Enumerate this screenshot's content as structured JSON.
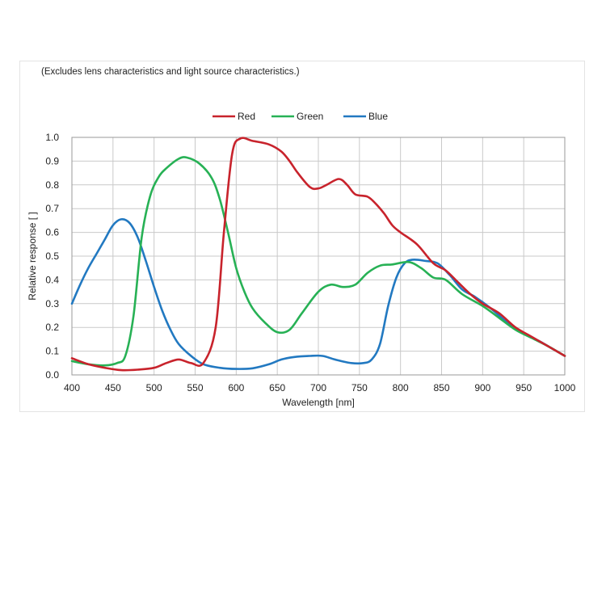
{
  "chart_data": {
    "type": "line",
    "note": "(Excludes lens characteristics and light source characteristics.)",
    "xlabel": "Wavelength [nm]",
    "ylabel": "Relative response [ ]",
    "xlim": [
      400,
      1000
    ],
    "ylim": [
      0,
      1.0
    ],
    "x_ticks": [
      400,
      450,
      500,
      550,
      600,
      650,
      700,
      750,
      800,
      850,
      900,
      950,
      1000
    ],
    "y_ticks": [
      "0.0",
      "0.1",
      "0.2",
      "0.3",
      "0.4",
      "0.5",
      "0.6",
      "0.7",
      "0.8",
      "0.9",
      "1.0"
    ],
    "grid": true,
    "legend_position": "top-center",
    "series": [
      {
        "name": "Red",
        "color": "#c8232c",
        "points": [
          [
            400,
            0.07
          ],
          [
            420,
            0.045
          ],
          [
            440,
            0.03
          ],
          [
            460,
            0.02
          ],
          [
            480,
            0.022
          ],
          [
            500,
            0.03
          ],
          [
            515,
            0.05
          ],
          [
            530,
            0.065
          ],
          [
            545,
            0.05
          ],
          [
            560,
            0.05
          ],
          [
            575,
            0.2
          ],
          [
            585,
            0.6
          ],
          [
            595,
            0.93
          ],
          [
            605,
            0.995
          ],
          [
            620,
            0.985
          ],
          [
            640,
            0.97
          ],
          [
            655,
            0.94
          ],
          [
            665,
            0.9
          ],
          [
            675,
            0.85
          ],
          [
            690,
            0.79
          ],
          [
            700,
            0.785
          ],
          [
            710,
            0.8
          ],
          [
            725,
            0.825
          ],
          [
            735,
            0.8
          ],
          [
            745,
            0.76
          ],
          [
            760,
            0.75
          ],
          [
            770,
            0.72
          ],
          [
            780,
            0.68
          ],
          [
            790,
            0.63
          ],
          [
            800,
            0.6
          ],
          [
            820,
            0.55
          ],
          [
            840,
            0.47
          ],
          [
            855,
            0.44
          ],
          [
            870,
            0.39
          ],
          [
            885,
            0.34
          ],
          [
            900,
            0.3
          ],
          [
            920,
            0.26
          ],
          [
            940,
            0.2
          ],
          [
            960,
            0.16
          ],
          [
            980,
            0.12
          ],
          [
            1000,
            0.08
          ]
        ]
      },
      {
        "name": "Green",
        "color": "#27b155",
        "points": [
          [
            400,
            0.058
          ],
          [
            420,
            0.045
          ],
          [
            440,
            0.04
          ],
          [
            455,
            0.05
          ],
          [
            465,
            0.08
          ],
          [
            475,
            0.25
          ],
          [
            485,
            0.58
          ],
          [
            495,
            0.75
          ],
          [
            505,
            0.83
          ],
          [
            515,
            0.87
          ],
          [
            530,
            0.91
          ],
          [
            540,
            0.915
          ],
          [
            555,
            0.89
          ],
          [
            570,
            0.83
          ],
          [
            580,
            0.74
          ],
          [
            590,
            0.6
          ],
          [
            600,
            0.45
          ],
          [
            610,
            0.35
          ],
          [
            620,
            0.28
          ],
          [
            635,
            0.22
          ],
          [
            650,
            0.18
          ],
          [
            665,
            0.19
          ],
          [
            680,
            0.26
          ],
          [
            700,
            0.35
          ],
          [
            715,
            0.38
          ],
          [
            730,
            0.37
          ],
          [
            745,
            0.38
          ],
          [
            760,
            0.43
          ],
          [
            775,
            0.46
          ],
          [
            790,
            0.465
          ],
          [
            810,
            0.475
          ],
          [
            825,
            0.45
          ],
          [
            840,
            0.41
          ],
          [
            855,
            0.4
          ],
          [
            875,
            0.34
          ],
          [
            900,
            0.29
          ],
          [
            920,
            0.24
          ],
          [
            940,
            0.19
          ],
          [
            960,
            0.155
          ],
          [
            980,
            0.12
          ],
          [
            1000,
            0.08
          ]
        ]
      },
      {
        "name": "Blue",
        "color": "#2279c1",
        "points": [
          [
            400,
            0.3
          ],
          [
            410,
            0.38
          ],
          [
            420,
            0.45
          ],
          [
            430,
            0.51
          ],
          [
            440,
            0.57
          ],
          [
            450,
            0.63
          ],
          [
            460,
            0.655
          ],
          [
            470,
            0.64
          ],
          [
            480,
            0.58
          ],
          [
            490,
            0.48
          ],
          [
            500,
            0.37
          ],
          [
            510,
            0.27
          ],
          [
            520,
            0.19
          ],
          [
            530,
            0.13
          ],
          [
            545,
            0.08
          ],
          [
            560,
            0.045
          ],
          [
            580,
            0.03
          ],
          [
            600,
            0.025
          ],
          [
            620,
            0.028
          ],
          [
            640,
            0.045
          ],
          [
            655,
            0.065
          ],
          [
            670,
            0.075
          ],
          [
            690,
            0.08
          ],
          [
            705,
            0.08
          ],
          [
            720,
            0.065
          ],
          [
            740,
            0.05
          ],
          [
            755,
            0.05
          ],
          [
            765,
            0.065
          ],
          [
            775,
            0.13
          ],
          [
            785,
            0.29
          ],
          [
            795,
            0.41
          ],
          [
            805,
            0.47
          ],
          [
            815,
            0.485
          ],
          [
            830,
            0.48
          ],
          [
            845,
            0.47
          ],
          [
            860,
            0.42
          ],
          [
            875,
            0.36
          ],
          [
            890,
            0.33
          ],
          [
            910,
            0.28
          ],
          [
            930,
            0.22
          ],
          [
            950,
            0.175
          ],
          [
            970,
            0.14
          ],
          [
            985,
            0.11
          ],
          [
            1000,
            0.08
          ]
        ]
      }
    ]
  }
}
